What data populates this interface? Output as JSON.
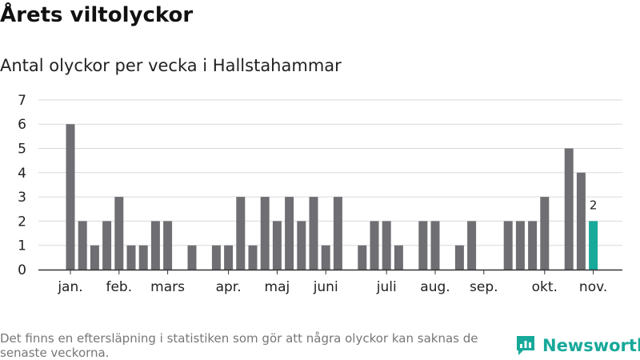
{
  "header": {
    "title": "Årets viltolyckor",
    "subtitle": "Antal olyckor per vecka i Hallstahammar"
  },
  "footer": {
    "note": "Det finns en eftersläpning i statistiken som gör att några olyckor kan saknas de senaste veckorna.",
    "brand": "Newsworthy",
    "brand_color": "#17a99a"
  },
  "chart_data": {
    "type": "bar",
    "title": "Årets viltolyckor",
    "subtitle": "Antal olyckor per vecka i Hallstahammar",
    "xlabel": "",
    "ylabel": "",
    "ylim": [
      0,
      7
    ],
    "yticks": [
      0,
      1,
      2,
      3,
      4,
      5,
      6,
      7
    ],
    "grid": true,
    "weeks": [
      1,
      2,
      3,
      4,
      5,
      6,
      7,
      8,
      9,
      10,
      11,
      12,
      13,
      14,
      15,
      16,
      17,
      18,
      19,
      20,
      21,
      22,
      23,
      24,
      25,
      26,
      27,
      28,
      29,
      30,
      31,
      32,
      33,
      34,
      35,
      36,
      37,
      38,
      39,
      40,
      41,
      42,
      43,
      44,
      45,
      46
    ],
    "values": [
      6,
      2,
      1,
      2,
      3,
      1,
      1,
      2,
      2,
      0,
      1,
      0,
      1,
      1,
      3,
      1,
      3,
      2,
      3,
      2,
      3,
      1,
      3,
      0,
      1,
      2,
      2,
      1,
      0,
      2,
      2,
      0,
      1,
      2,
      0,
      0,
      2,
      2,
      2,
      3,
      0,
      5,
      4,
      2,
      0,
      0
    ],
    "highlight_index": 43,
    "highlight_label": "2",
    "month_labels": [
      {
        "label": "jan.",
        "week": 1
      },
      {
        "label": "feb.",
        "week": 5
      },
      {
        "label": "mars",
        "week": 9
      },
      {
        "label": "apr.",
        "week": 14
      },
      {
        "label": "maj",
        "week": 18
      },
      {
        "label": "juni",
        "week": 22
      },
      {
        "label": "juli",
        "week": 27
      },
      {
        "label": "aug.",
        "week": 31
      },
      {
        "label": "sep.",
        "week": 35
      },
      {
        "label": "okt.",
        "week": 40
      },
      {
        "label": "nov.",
        "week": 44
      }
    ],
    "colors": {
      "bar": "#6f6e73",
      "highlight": "#17a99a",
      "grid": "#d9d9d9",
      "axis": "#333333"
    }
  }
}
